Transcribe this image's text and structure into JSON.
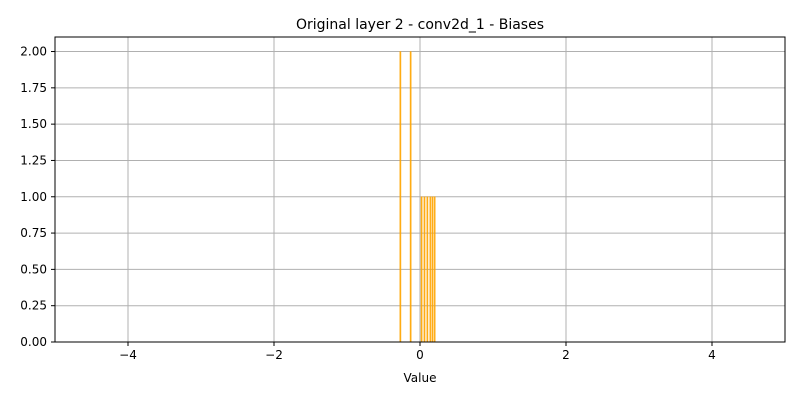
{
  "chart_data": {
    "type": "bar",
    "title": "Original layer 2 - conv2d_1 - Biases",
    "xlabel": "Value",
    "ylabel": "",
    "xlim": [
      -5,
      5
    ],
    "ylim": [
      0,
      2.1
    ],
    "xticks": [
      -4,
      -2,
      0,
      2,
      4
    ],
    "xtick_labels": [
      "−4",
      "−2",
      "0",
      "2",
      "4"
    ],
    "yticks": [
      0,
      0.25,
      0.5,
      0.75,
      1.0,
      1.25,
      1.5,
      1.75,
      2.0
    ],
    "ytick_labels": [
      "0.00",
      "0.25",
      "0.50",
      "0.75",
      "1.00",
      "1.25",
      "1.50",
      "1.75",
      "2.00"
    ],
    "grid": true,
    "bar_color": "#ffa500",
    "bins": [
      {
        "x": -0.27,
        "count": 2
      },
      {
        "x": -0.13,
        "count": 2
      },
      {
        "x": 0.02,
        "count": 1
      },
      {
        "x": 0.06,
        "count": 1
      },
      {
        "x": 0.1,
        "count": 1
      },
      {
        "x": 0.14,
        "count": 1
      },
      {
        "x": 0.17,
        "count": 1
      },
      {
        "x": 0.2,
        "count": 1
      }
    ]
  }
}
